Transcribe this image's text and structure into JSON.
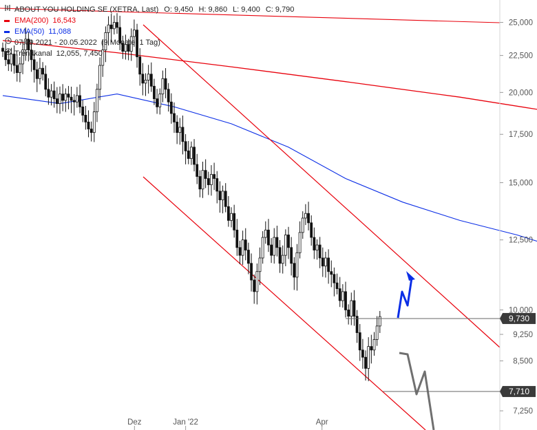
{
  "header": {
    "title": "ABOUT YOU HOLDING SE (XETRA, Last)",
    "ohlc": {
      "O": "9,450",
      "H": "9,860",
      "L": "9,400",
      "C": "9,790"
    }
  },
  "legend": [
    {
      "label": "EMA(200)",
      "value": "16,543",
      "color": "#e8000b"
    },
    {
      "label": "EMA(50)",
      "value": "11,088",
      "color": "#0b2ee6"
    },
    {
      "label": "07.09.2021 - 20.05.2022",
      "value": "(9 Monate, 1 Tag)",
      "icon": "clock-icon"
    },
    {
      "label": "Trendkanal",
      "value": "12,055, 7,450",
      "icon": "target-icon"
    }
  ],
  "price_tags": [
    {
      "value": "9,730",
      "price": 9.73
    },
    {
      "value": "7,710",
      "price": 7.71
    }
  ],
  "colors": {
    "ema200": "#e8000b",
    "ema50": "#0b2ee6",
    "trend": "#e8000b",
    "arrow_up": "#0b2ee6",
    "arrow_down": "#707070",
    "candle": "#111111"
  },
  "chart_data": {
    "type": "candlestick",
    "y_scale": "log",
    "ylim": [
      6.85,
      26.5
    ],
    "y_ticks": [
      {
        "label": "25,000",
        "value": 25.0
      },
      {
        "label": "22,500",
        "value": 22.5
      },
      {
        "label": "20,000",
        "value": 20.0
      },
      {
        "label": "17,500",
        "value": 17.5
      },
      {
        "label": "15,000",
        "value": 15.0
      },
      {
        "label": "12,500",
        "value": 12.5
      },
      {
        "label": "10,000",
        "value": 10.0
      },
      {
        "label": "9,250",
        "value": 9.25
      },
      {
        "label": "8,500",
        "value": 8.5
      },
      {
        "label": "7,250",
        "value": 7.25
      }
    ],
    "xlim": [
      "2021-09-07",
      "2022-05-20"
    ],
    "x_ticks": [
      {
        "label": "Dez",
        "date": "2021-12-01"
      },
      {
        "label": "Jan '22",
        "date": "2022-01-03"
      },
      {
        "label": "Apr",
        "date": "2022-04-01"
      }
    ],
    "close": [
      22.8,
      22.2,
      21.9,
      22.6,
      21.8,
      21.3,
      21.9,
      22.9,
      23.7,
      22.9,
      22.2,
      21.5,
      20.9,
      21.6,
      21.2,
      20.2,
      19.7,
      20.1,
      19.6,
      19.3,
      19.9,
      19.5,
      19.9,
      19.7,
      19.5,
      19.4,
      19.8,
      19.1,
      18.6,
      18.2,
      17.8,
      17.6,
      18.8,
      20.2,
      21.8,
      22.9,
      24.2,
      24.8,
      24.5,
      25.0,
      24.6,
      23.4,
      22.8,
      23.3,
      22.8,
      23.9,
      24.4,
      22.4,
      21.2,
      20.6,
      20.8,
      21.2,
      20.4,
      19.6,
      19.1,
      19.9,
      20.9,
      20.2,
      19.4,
      18.7,
      18.2,
      17.6,
      17.9,
      17.1,
      16.6,
      16.2,
      16.8,
      15.9,
      15.3,
      14.7,
      15.6,
      15.2,
      14.9,
      15.4,
      15.2,
      14.6,
      14.2,
      14.6,
      13.9,
      13.3,
      13.6,
      12.9,
      12.2,
      11.9,
      12.5,
      12.1,
      11.6,
      11.0,
      10.6,
      11.3,
      11.8,
      12.6,
      12.9,
      12.3,
      11.9,
      12.6,
      12.2,
      11.6,
      11.9,
      12.7,
      12.2,
      11.6,
      11.1,
      12.0,
      12.8,
      13.4,
      13.6,
      13.2,
      12.6,
      12.1,
      12.3,
      11.8,
      11.5,
      11.8,
      11.3,
      11.2,
      10.9,
      10.7,
      10.3,
      10.6,
      10.0,
      9.8,
      10.3,
      9.8,
      9.3,
      8.8,
      8.6,
      8.3,
      8.9,
      8.8,
      9.1,
      9.5,
      9.79
    ],
    "ema200": [
      [
        0,
        23.6
      ],
      [
        40,
        22.7
      ],
      [
        80,
        21.7
      ],
      [
        120,
        20.7
      ],
      [
        160,
        19.7
      ],
      [
        200,
        18.6
      ],
      [
        229,
        17.8
      ],
      [
        250,
        16.8
      ],
      [
        265,
        16.3
      ]
    ],
    "ema50": [
      [
        0,
        19.8
      ],
      [
        20,
        19.3
      ],
      [
        40,
        19.9
      ],
      [
        60,
        19.1
      ],
      [
        80,
        18.1
      ],
      [
        100,
        16.8
      ],
      [
        120,
        15.2
      ],
      [
        140,
        14.1
      ],
      [
        160,
        13.3
      ],
      [
        180,
        12.7
      ],
      [
        200,
        12.0
      ],
      [
        220,
        11.5
      ],
      [
        240,
        11.3
      ],
      [
        258,
        11.1
      ]
    ],
    "trend_channel": {
      "upper": "12,055",
      "lower": "7,450"
    }
  }
}
